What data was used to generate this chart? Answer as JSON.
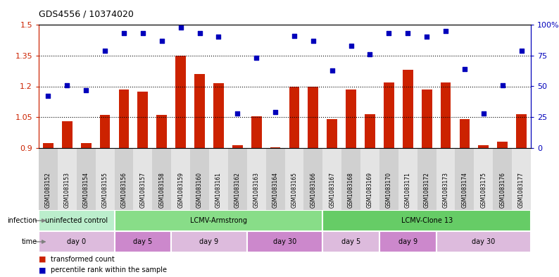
{
  "title": "GDS4556 / 10374020",
  "samples": [
    "GSM1083152",
    "GSM1083153",
    "GSM1083154",
    "GSM1083155",
    "GSM1083156",
    "GSM1083157",
    "GSM1083158",
    "GSM1083159",
    "GSM1083160",
    "GSM1083161",
    "GSM1083162",
    "GSM1083163",
    "GSM1083164",
    "GSM1083165",
    "GSM1083166",
    "GSM1083167",
    "GSM1083168",
    "GSM1083169",
    "GSM1083170",
    "GSM1083171",
    "GSM1083172",
    "GSM1083173",
    "GSM1083174",
    "GSM1083175",
    "GSM1083176",
    "GSM1083177"
  ],
  "bar_values": [
    0.925,
    1.03,
    0.925,
    1.06,
    1.185,
    1.175,
    1.06,
    1.35,
    1.26,
    1.215,
    0.915,
    1.055,
    0.905,
    1.2,
    1.2,
    1.04,
    1.185,
    1.065,
    1.22,
    1.28,
    1.185,
    1.22,
    1.04,
    0.915,
    0.93,
    1.065
  ],
  "dot_values_pct": [
    42,
    51,
    47,
    79,
    93,
    93,
    87,
    98,
    93,
    90,
    28,
    73,
    29,
    91,
    87,
    63,
    83,
    76,
    93,
    93,
    90,
    95,
    64,
    28,
    51,
    79
  ],
  "ylim_left": [
    0.9,
    1.5
  ],
  "ylim_right": [
    0,
    100
  ],
  "yticks_left": [
    0.9,
    1.05,
    1.2,
    1.35,
    1.5
  ],
  "yticks_right": [
    0,
    25,
    50,
    75,
    100
  ],
  "hlines": [
    1.05,
    1.2,
    1.35
  ],
  "bar_color": "#cc2200",
  "dot_color": "#0000bb",
  "infection_groups": [
    {
      "label": "uninfected control",
      "start": 0,
      "end": 4,
      "color": "#bbeecc"
    },
    {
      "label": "LCMV-Armstrong",
      "start": 4,
      "end": 15,
      "color": "#88dd88"
    },
    {
      "label": "LCMV-Clone 13",
      "start": 15,
      "end": 26,
      "color": "#66cc66"
    }
  ],
  "time_groups": [
    {
      "label": "day 0",
      "start": 0,
      "end": 4,
      "color": "#ddbbdd"
    },
    {
      "label": "day 5",
      "start": 4,
      "end": 7,
      "color": "#cc88cc"
    },
    {
      "label": "day 9",
      "start": 7,
      "end": 11,
      "color": "#ddbbdd"
    },
    {
      "label": "day 30",
      "start": 11,
      "end": 15,
      "color": "#cc88cc"
    },
    {
      "label": "day 5",
      "start": 15,
      "end": 18,
      "color": "#ddbbdd"
    },
    {
      "label": "day 9",
      "start": 18,
      "end": 21,
      "color": "#cc88cc"
    },
    {
      "label": "day 30",
      "start": 21,
      "end": 26,
      "color": "#ddbbdd"
    }
  ],
  "infection_label": "infection",
  "time_label": "time",
  "legend_bar_label": "transformed count",
  "legend_dot_label": "percentile rank within the sample",
  "col_colors_even": "#d0d0d0",
  "col_colors_odd": "#e4e4e4"
}
